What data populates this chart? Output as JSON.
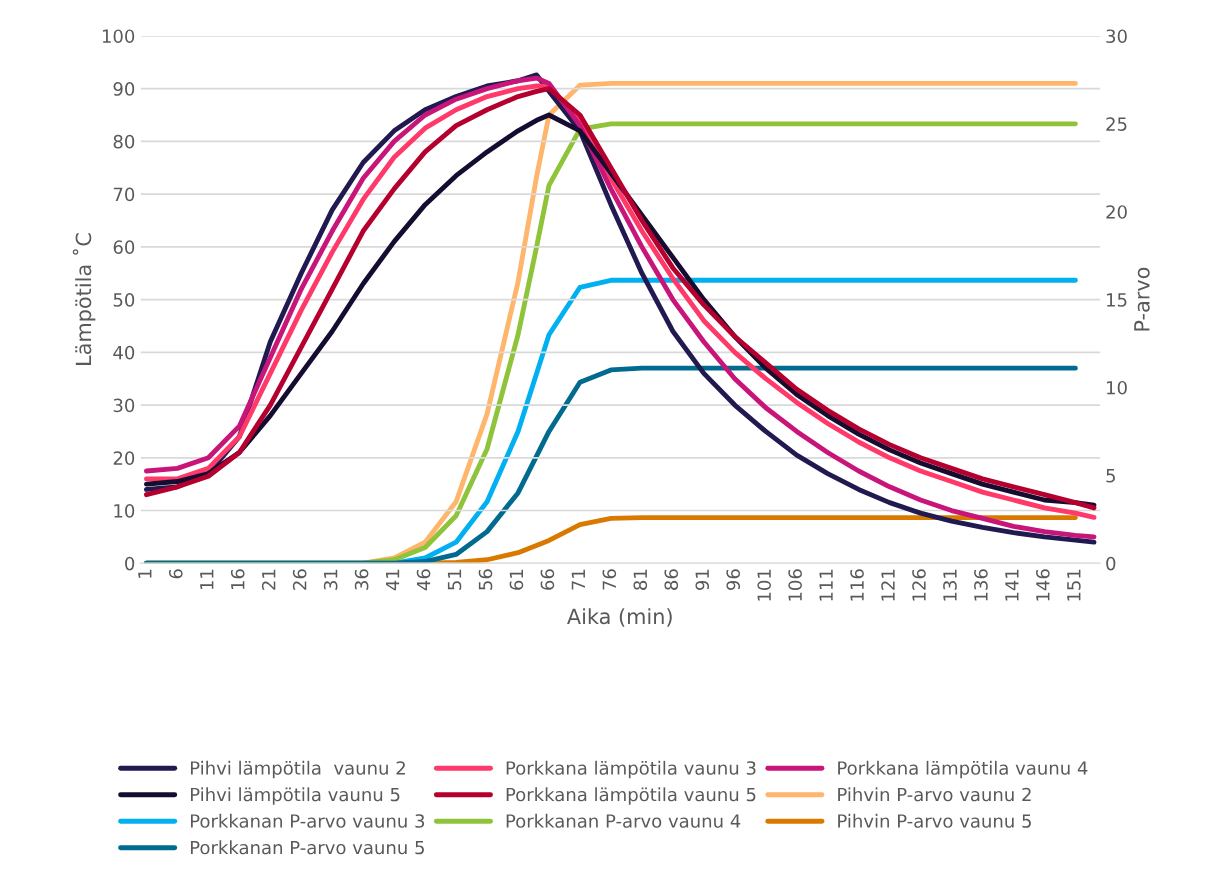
{
  "chart_data": {
    "type": "line",
    "xlabel": "Aika (min)",
    "ylabel": "Lämpötila ˚C",
    "y2label": "P-arvo",
    "xlim": [
      0,
      155
    ],
    "xticks": [
      1,
      6,
      11,
      16,
      21,
      26,
      31,
      36,
      41,
      46,
      51,
      56,
      61,
      66,
      71,
      76,
      81,
      86,
      91,
      96,
      101,
      106,
      111,
      116,
      121,
      126,
      131,
      136,
      141,
      146,
      151
    ],
    "ylim": [
      0,
      100
    ],
    "yticks": [
      0,
      10,
      20,
      30,
      40,
      50,
      60,
      70,
      80,
      90,
      100
    ],
    "y2lim": [
      0,
      30
    ],
    "y2ticks": [
      0,
      5,
      10,
      15,
      20,
      25,
      30
    ],
    "grid": "y",
    "legend": "bottom",
    "marker": "none",
    "line_style": "solid",
    "series": [
      {
        "name": "Pihvi lämpötila  vaunu 2",
        "color": "#201a50",
        "x": [
          1,
          6,
          11,
          16,
          21,
          26,
          31,
          36,
          41,
          46,
          51,
          56,
          61,
          64,
          66,
          71,
          76,
          81,
          86,
          91,
          96,
          101,
          106,
          111,
          116,
          121,
          126,
          131,
          136,
          141,
          146,
          151,
          154
        ],
        "values": [
          14,
          14.5,
          17,
          24,
          42,
          55,
          67,
          76,
          82,
          86,
          88.5,
          90.5,
          91.5,
          92.6,
          89.5,
          82,
          68,
          55,
          44,
          36,
          30,
          25,
          20.5,
          17,
          14,
          11.5,
          9.5,
          8,
          6.8,
          5.8,
          5,
          4.4,
          4
        ]
      },
      {
        "name": "Porkkana lämpötila vaunu 3",
        "color": "#ff3a6a",
        "x": [
          1,
          6,
          11,
          16,
          21,
          26,
          31,
          36,
          41,
          46,
          51,
          56,
          61,
          64,
          66,
          71,
          76,
          81,
          86,
          91,
          96,
          101,
          106,
          111,
          116,
          121,
          126,
          131,
          136,
          141,
          146,
          151,
          154
        ],
        "values": [
          16,
          16,
          18,
          24,
          36,
          48,
          59,
          69,
          77,
          82.5,
          86,
          88.5,
          90,
          90.5,
          90.5,
          84,
          73,
          63,
          54,
          46,
          40,
          35,
          30.5,
          26.5,
          23,
          20,
          17.5,
          15.5,
          13.5,
          12,
          10.5,
          9.5,
          8.7
        ]
      },
      {
        "name": "Porkkana lämpötila vaunu 4",
        "color": "#c8157a",
        "x": [
          1,
          6,
          11,
          16,
          21,
          26,
          31,
          36,
          41,
          46,
          51,
          56,
          61,
          64,
          66,
          71,
          76,
          81,
          86,
          91,
          96,
          101,
          106,
          111,
          116,
          121,
          126,
          131,
          136,
          141,
          146,
          151,
          154
        ],
        "values": [
          17.5,
          18,
          20,
          26,
          39,
          52,
          63,
          73,
          80,
          85,
          88,
          90,
          91.5,
          92,
          91,
          83,
          71,
          60,
          50,
          42,
          35,
          29.5,
          25,
          21,
          17.5,
          14.5,
          12,
          10,
          8.5,
          7,
          6,
          5.3,
          5
        ]
      },
      {
        "name": "Pihvi lämpötila vaunu 5",
        "color": "#150c30",
        "x": [
          1,
          6,
          11,
          16,
          21,
          26,
          31,
          36,
          41,
          46,
          51,
          56,
          61,
          64,
          66,
          71,
          76,
          81,
          86,
          91,
          96,
          101,
          106,
          111,
          116,
          121,
          126,
          131,
          136,
          141,
          146,
          151,
          154
        ],
        "values": [
          15,
          15.5,
          17,
          21,
          28,
          36,
          44,
          53,
          61,
          68,
          73.5,
          78,
          82,
          84,
          85,
          82,
          74,
          66,
          58,
          50,
          43,
          37,
          32,
          28,
          24.5,
          21.5,
          19,
          17,
          15,
          13.5,
          12,
          11.5,
          11
        ]
      },
      {
        "name": "Porkkana lämpötila vaunu 5",
        "color": "#b5002f",
        "x": [
          1,
          6,
          11,
          16,
          21,
          26,
          31,
          36,
          41,
          46,
          51,
          56,
          61,
          64,
          66,
          71,
          76,
          81,
          86,
          91,
          96,
          101,
          106,
          111,
          116,
          121,
          126,
          131,
          136,
          141,
          146,
          151,
          154
        ],
        "values": [
          13,
          14.5,
          16.5,
          21,
          30,
          41,
          52,
          63,
          71,
          78,
          83,
          86,
          88.5,
          89.5,
          90,
          85,
          75,
          65,
          56,
          49,
          43,
          38,
          33,
          29,
          25.5,
          22.5,
          20,
          18,
          16,
          14.5,
          13,
          11.5,
          10.5
        ]
      },
      {
        "name": "Pihvin P-arvo vaunu 2",
        "color": "#ffb56b",
        "axis": "y2",
        "x": [
          1,
          36,
          41,
          46,
          51,
          56,
          61,
          64,
          66,
          71,
          76,
          151
        ],
        "values": [
          0,
          0,
          0.3,
          1.2,
          3.5,
          8.5,
          16,
          22,
          25.5,
          27.2,
          27.3,
          27.3
        ]
      },
      {
        "name": "Porkkanan P-arvo vaunu 3",
        "color": "#00b0f0",
        "axis": "y2",
        "x": [
          1,
          41,
          46,
          51,
          56,
          61,
          66,
          71,
          76,
          151
        ],
        "values": [
          0,
          0,
          0.3,
          1.2,
          3.5,
          7.5,
          13,
          15.7,
          16.1,
          16.1
        ]
      },
      {
        "name": "Porkkanan P-arvo vaunu 4",
        "color": "#8fc33a",
        "axis": "y2",
        "x": [
          1,
          36,
          41,
          46,
          51,
          56,
          61,
          64,
          66,
          71,
          76,
          151
        ],
        "values": [
          0,
          0,
          0.2,
          0.9,
          2.7,
          6.5,
          13,
          18,
          21.5,
          24.7,
          25,
          25
        ]
      },
      {
        "name": "Pihvin P-arvo vaunu 5",
        "color": "#d97a00",
        "axis": "y2",
        "x": [
          1,
          46,
          51,
          56,
          61,
          66,
          71,
          76,
          81,
          151
        ],
        "values": [
          0,
          0,
          0.05,
          0.2,
          0.6,
          1.3,
          2.2,
          2.55,
          2.6,
          2.6
        ]
      },
      {
        "name": "Porkkanan P-arvo vaunu 5",
        "color": "#006b8f",
        "axis": "y2",
        "x": [
          1,
          41,
          46,
          51,
          56,
          61,
          66,
          71,
          76,
          81,
          151
        ],
        "values": [
          0,
          0,
          0.1,
          0.5,
          1.8,
          4,
          7.5,
          10.3,
          11,
          11.1,
          11.1
        ]
      }
    ]
  }
}
